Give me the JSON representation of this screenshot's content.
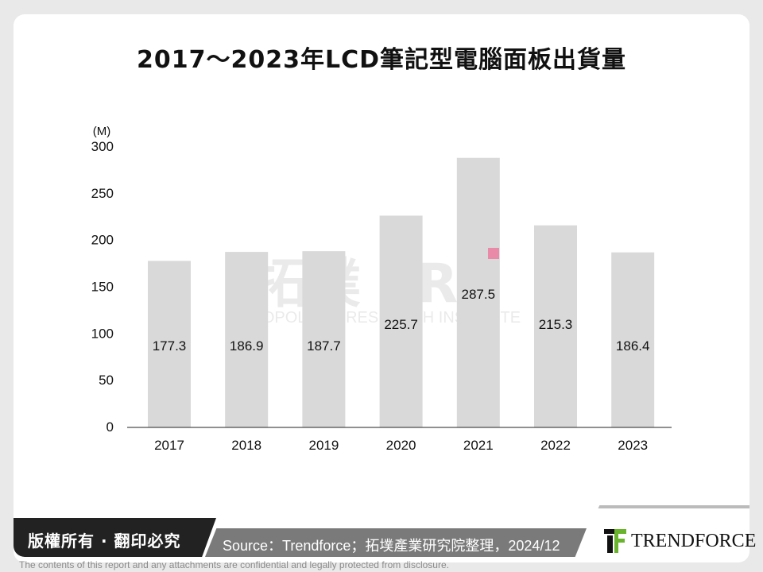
{
  "title": "2017～2023年LCD筆記型電腦面板出貨量",
  "chart_data": {
    "type": "bar",
    "title": "2017～2023年LCD筆記型電腦面板出貨量",
    "ylabel": "(M)",
    "xlabel": "",
    "categories": [
      "2017",
      "2018",
      "2019",
      "2020",
      "2021",
      "2022",
      "2023"
    ],
    "values": [
      177.3,
      186.9,
      187.7,
      225.7,
      287.5,
      215.3,
      186.4
    ],
    "data_labels": [
      "177.3",
      "186.9",
      "187.7",
      "225.7",
      "287.5",
      "215.3",
      "186.4"
    ],
    "ylim": [
      0,
      300
    ],
    "yticks": [
      "0",
      "50",
      "100",
      "150",
      "200",
      "250",
      "300"
    ],
    "grid": false,
    "bar_color": "#d9d9d9"
  },
  "watermark": {
    "logo": "拓墣 TRI",
    "text": "TOPOLOGY RESEARCH INSTITUTE"
  },
  "footer": {
    "copyright": "版權所有 · 翻印必究",
    "source": "Source：Trendforce；拓墣產業研究院整理，2024/12",
    "brand": "TRENDFORCE",
    "disclaimer": "The contents of this report and any attachments are confidential and legally protected from disclosure."
  }
}
